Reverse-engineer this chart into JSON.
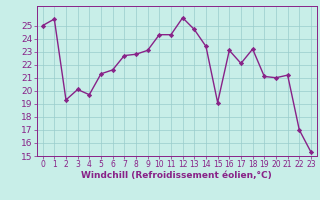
{
  "xlabel": "Windchill (Refroidissement éolien,°C)",
  "x_values": [
    0,
    1,
    2,
    3,
    4,
    5,
    6,
    7,
    8,
    9,
    10,
    11,
    12,
    13,
    14,
    15,
    16,
    17,
    18,
    19,
    20,
    21,
    22,
    23
  ],
  "y_values": [
    25.0,
    25.5,
    19.3,
    20.1,
    19.7,
    21.3,
    21.6,
    22.7,
    22.8,
    23.1,
    24.3,
    24.3,
    25.6,
    24.7,
    23.4,
    19.1,
    23.1,
    22.1,
    23.2,
    21.1,
    21.0,
    21.2,
    17.0,
    15.3
  ],
  "line_color": "#882288",
  "marker": "D",
  "marker_size": 2.2,
  "bg_color": "#c8eee8",
  "grid_color": "#99cccc",
  "ylim": [
    15,
    26
  ],
  "yticks": [
    15,
    16,
    17,
    18,
    19,
    20,
    21,
    22,
    23,
    24,
    25
  ],
  "xlabel_fontsize": 6.5,
  "tick_fontsize": 6.5,
  "line_width": 1.0
}
